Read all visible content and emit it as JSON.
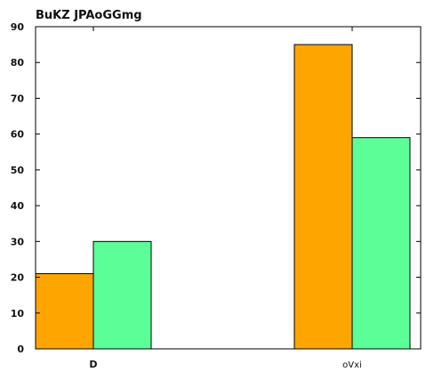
{
  "chart_data": {
    "type": "bar",
    "title": "BuKZ JPAoGGmg",
    "xlabel": "",
    "ylabel": "",
    "categories": [
      "D",
      "oVxi"
    ],
    "series": [
      {
        "values": [
          21,
          85
        ],
        "color": "#FFA500"
      },
      {
        "values": [
          30,
          59
        ],
        "color": "#5CFF97"
      }
    ],
    "ylim": [
      0,
      90
    ],
    "yticks": [
      0,
      10,
      20,
      30,
      40,
      50,
      60,
      70,
      80,
      90
    ],
    "grid": false,
    "legend": "none"
  }
}
